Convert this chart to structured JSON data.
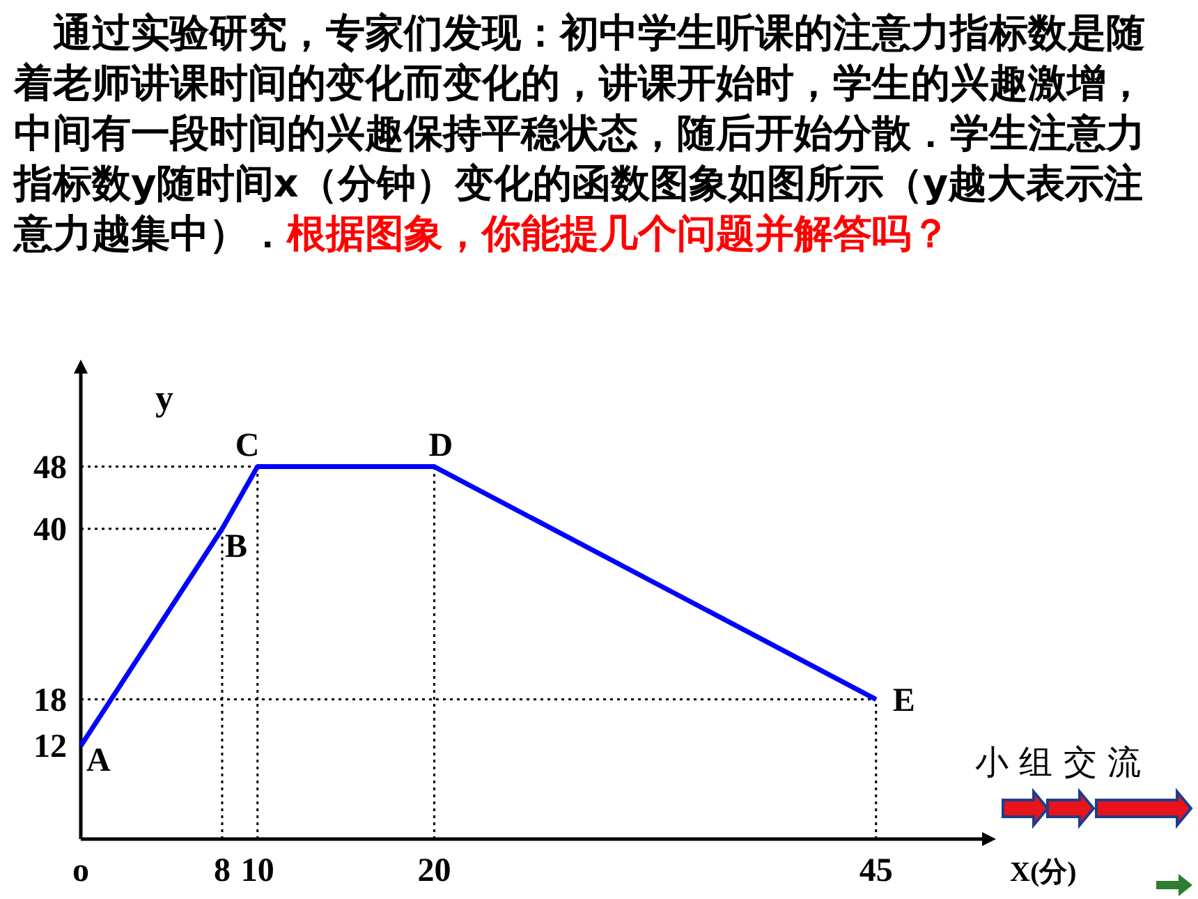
{
  "chart_data": {
    "type": "line",
    "title": "通过实验研究，专家们发现：初中学生听课的注意力指标数是随着老师讲课时间的变化而变化的，讲课开始时，学生的兴趣激增，中间有一段时间的兴趣保持平稳状态，随后开始分散．学生注意力指标数y随时间x（分钟）变化的函数图象如图所示（y越大表示注意力越集中）．",
    "subtitle": "根据图象，你能提几个问题并解答吗？",
    "xlabel": "X(分)",
    "ylabel": "y",
    "x": [
      0,
      8,
      10,
      20,
      45
    ],
    "series": [
      {
        "color": "#0000ff",
        "values": [
          12,
          40,
          48,
          48,
          18
        ]
      }
    ],
    "xlim": [
      0,
      51
    ],
    "ylim": [
      0,
      60
    ],
    "xticks": [
      {
        "value": 0,
        "label": "o"
      },
      8,
      10,
      20,
      45
    ],
    "yticks": [
      12,
      18,
      40,
      48
    ],
    "ref_lines": [
      {
        "axis": "y",
        "value": 48
      },
      {
        "axis": "y",
        "value": 40
      },
      {
        "axis": "y",
        "value": 18
      },
      {
        "axis": "x",
        "value": 8
      },
      {
        "axis": "x",
        "value": 10
      },
      {
        "axis": "x",
        "value": 20
      },
      {
        "axis": "x",
        "value": 45
      }
    ],
    "annotations": [
      {
        "text": "A",
        "x": 0,
        "y": 12
      },
      {
        "text": "B",
        "x": 8,
        "y": 40
      },
      {
        "text": "C",
        "x": 10,
        "y": 48
      },
      {
        "text": "D",
        "x": 20,
        "y": 48
      },
      {
        "text": "E",
        "x": 45,
        "y": 18
      },
      "小 组 交 流"
    ],
    "marker": "none",
    "grid": false
  }
}
